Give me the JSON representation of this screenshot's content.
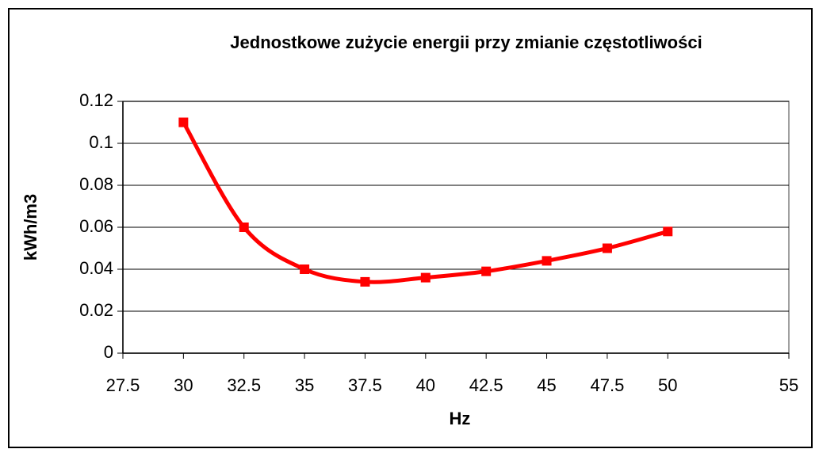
{
  "chart_data": {
    "type": "line",
    "title": "Jednostkowe zużycie energii przy zmianie częstotliwości",
    "x_label": "Hz",
    "y_label": "kWh/m3",
    "series": [
      {
        "name": "kWh/m3",
        "color": "#ff0000",
        "x": [
          30,
          32.5,
          35,
          37.5,
          40,
          42.5,
          45,
          47.5,
          50
        ],
        "values": [
          0.11,
          0.06,
          0.04,
          0.034,
          0.036,
          0.039,
          0.044,
          0.05,
          0.058
        ]
      }
    ],
    "xlim": [
      27.5,
      55
    ],
    "xticks": [
      27.5,
      30,
      32.5,
      35,
      37.5,
      40,
      42.5,
      45,
      47.5,
      50,
      55
    ],
    "ylim": [
      0,
      0.12
    ],
    "yticks": [
      0,
      0.02,
      0.04,
      0.06,
      0.08,
      0.1,
      0.12
    ],
    "grid": true,
    "smooth": true
  }
}
